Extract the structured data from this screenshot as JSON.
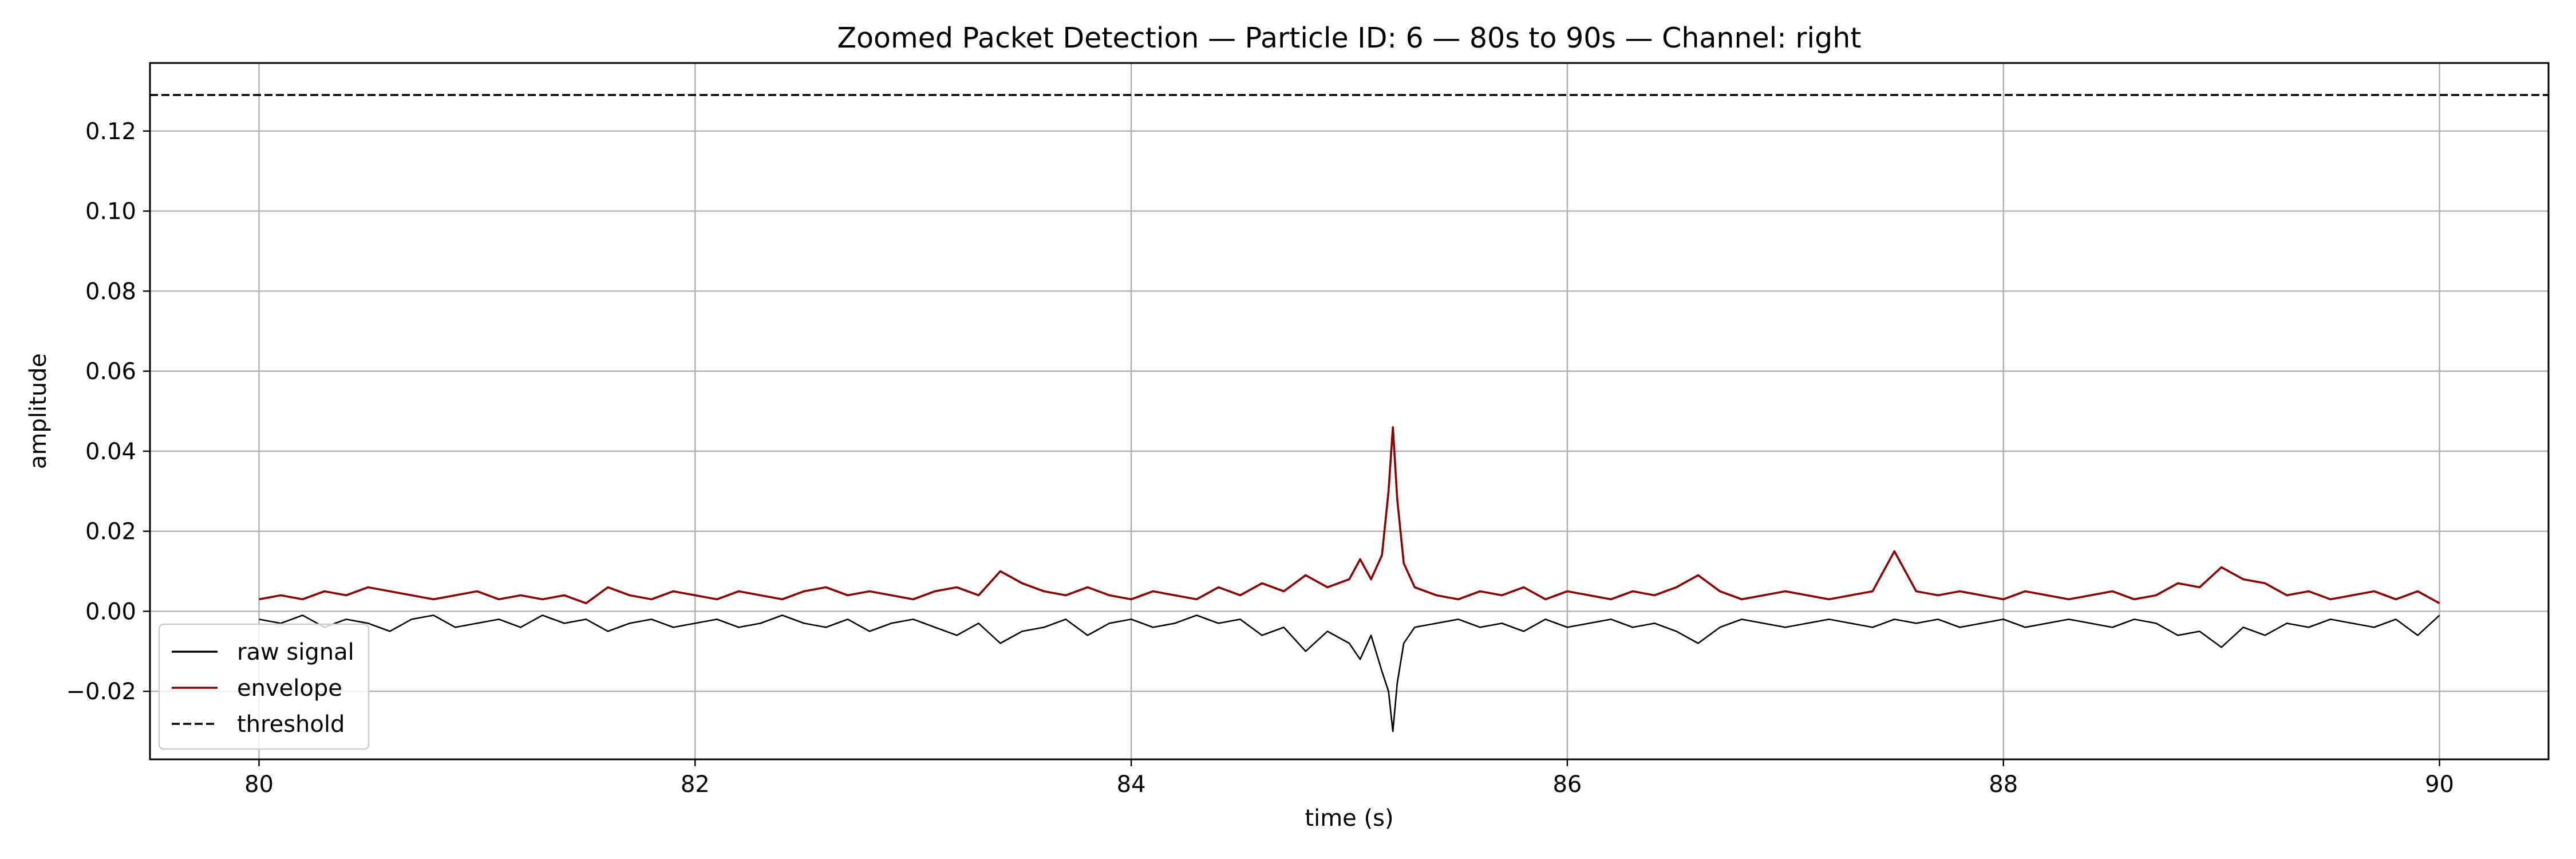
{
  "chart_data": {
    "type": "line",
    "title": "Zoomed Packet Detection — Particle ID: 6 — 80s to 90s — Channel: right",
    "xlabel": "time (s)",
    "ylabel": "amplitude",
    "xlim": [
      79.5,
      90.5
    ],
    "ylim": [
      -0.037,
      0.137
    ],
    "x_ticks": [
      80,
      82,
      84,
      86,
      88,
      90
    ],
    "x_tick_labels": [
      "80",
      "82",
      "84",
      "86",
      "88",
      "90"
    ],
    "y_ticks": [
      -0.02,
      0.0,
      0.02,
      0.04,
      0.06,
      0.08,
      0.1,
      0.12
    ],
    "y_tick_labels": [
      "−0.02",
      "0.00",
      "0.02",
      "0.04",
      "0.06",
      "0.08",
      "0.10",
      "0.12"
    ],
    "grid": true,
    "legend_position": "lower-left",
    "threshold": 0.129,
    "series": [
      {
        "name": "raw signal",
        "color": "#000000",
        "style": "solid",
        "x": [
          80.0,
          80.1,
          80.2,
          80.3,
          80.4,
          80.5,
          80.6,
          80.7,
          80.8,
          80.9,
          81.0,
          81.1,
          81.2,
          81.3,
          81.4,
          81.5,
          81.6,
          81.7,
          81.8,
          81.9,
          82.0,
          82.1,
          82.2,
          82.3,
          82.4,
          82.5,
          82.6,
          82.7,
          82.8,
          82.9,
          83.0,
          83.1,
          83.2,
          83.3,
          83.4,
          83.5,
          83.6,
          83.7,
          83.8,
          83.9,
          84.0,
          84.1,
          84.2,
          84.3,
          84.4,
          84.5,
          84.6,
          84.7,
          84.8,
          84.9,
          85.0,
          85.05,
          85.1,
          85.15,
          85.18,
          85.2,
          85.22,
          85.25,
          85.3,
          85.4,
          85.5,
          85.6,
          85.7,
          85.8,
          85.9,
          86.0,
          86.1,
          86.2,
          86.3,
          86.4,
          86.5,
          86.6,
          86.7,
          86.8,
          86.9,
          87.0,
          87.1,
          87.2,
          87.3,
          87.4,
          87.5,
          87.6,
          87.7,
          87.8,
          87.9,
          88.0,
          88.1,
          88.2,
          88.3,
          88.4,
          88.5,
          88.6,
          88.7,
          88.8,
          88.9,
          89.0,
          89.1,
          89.2,
          89.3,
          89.4,
          89.5,
          89.6,
          89.7,
          89.8,
          89.9,
          90.0
        ],
        "y": [
          -0.002,
          -0.003,
          -0.001,
          -0.004,
          -0.002,
          -0.003,
          -0.005,
          -0.002,
          -0.001,
          -0.004,
          -0.003,
          -0.002,
          -0.004,
          -0.001,
          -0.003,
          -0.002,
          -0.005,
          -0.003,
          -0.002,
          -0.004,
          -0.003,
          -0.002,
          -0.004,
          -0.003,
          -0.001,
          -0.003,
          -0.004,
          -0.002,
          -0.005,
          -0.003,
          -0.002,
          -0.004,
          -0.006,
          -0.003,
          -0.008,
          -0.005,
          -0.004,
          -0.002,
          -0.006,
          -0.003,
          -0.002,
          -0.004,
          -0.003,
          -0.001,
          -0.003,
          -0.002,
          -0.006,
          -0.004,
          -0.01,
          -0.005,
          -0.008,
          -0.012,
          -0.006,
          -0.015,
          -0.02,
          -0.03,
          -0.018,
          -0.008,
          -0.004,
          -0.003,
          -0.002,
          -0.004,
          -0.003,
          -0.005,
          -0.002,
          -0.004,
          -0.003,
          -0.002,
          -0.004,
          -0.003,
          -0.005,
          -0.008,
          -0.004,
          -0.002,
          -0.003,
          -0.004,
          -0.003,
          -0.002,
          -0.003,
          -0.004,
          -0.002,
          -0.003,
          -0.002,
          -0.004,
          -0.003,
          -0.002,
          -0.004,
          -0.003,
          -0.002,
          -0.003,
          -0.004,
          -0.002,
          -0.003,
          -0.006,
          -0.005,
          -0.009,
          -0.004,
          -0.006,
          -0.003,
          -0.004,
          -0.002,
          -0.003,
          -0.004,
          -0.002,
          -0.006,
          -0.001
        ]
      },
      {
        "name": "envelope",
        "color": "#8b0000",
        "style": "solid",
        "x": [
          80.0,
          80.1,
          80.2,
          80.3,
          80.4,
          80.5,
          80.6,
          80.7,
          80.8,
          80.9,
          81.0,
          81.1,
          81.2,
          81.3,
          81.4,
          81.5,
          81.6,
          81.7,
          81.8,
          81.9,
          82.0,
          82.1,
          82.2,
          82.3,
          82.4,
          82.5,
          82.6,
          82.7,
          82.8,
          82.9,
          83.0,
          83.1,
          83.2,
          83.3,
          83.4,
          83.5,
          83.6,
          83.7,
          83.8,
          83.9,
          84.0,
          84.1,
          84.2,
          84.3,
          84.4,
          84.5,
          84.6,
          84.7,
          84.8,
          84.9,
          85.0,
          85.05,
          85.1,
          85.15,
          85.18,
          85.2,
          85.22,
          85.25,
          85.3,
          85.4,
          85.5,
          85.6,
          85.7,
          85.8,
          85.9,
          86.0,
          86.1,
          86.2,
          86.3,
          86.4,
          86.5,
          86.6,
          86.7,
          86.8,
          86.9,
          87.0,
          87.1,
          87.2,
          87.3,
          87.4,
          87.5,
          87.6,
          87.7,
          87.8,
          87.9,
          88.0,
          88.1,
          88.2,
          88.3,
          88.4,
          88.5,
          88.6,
          88.7,
          88.8,
          88.9,
          89.0,
          89.1,
          89.2,
          89.3,
          89.4,
          89.5,
          89.6,
          89.7,
          89.8,
          89.9,
          90.0
        ],
        "y": [
          0.003,
          0.004,
          0.003,
          0.005,
          0.004,
          0.006,
          0.005,
          0.004,
          0.003,
          0.004,
          0.005,
          0.003,
          0.004,
          0.003,
          0.004,
          0.002,
          0.006,
          0.004,
          0.003,
          0.005,
          0.004,
          0.003,
          0.005,
          0.004,
          0.003,
          0.005,
          0.006,
          0.004,
          0.005,
          0.004,
          0.003,
          0.005,
          0.006,
          0.004,
          0.01,
          0.007,
          0.005,
          0.004,
          0.006,
          0.004,
          0.003,
          0.005,
          0.004,
          0.003,
          0.006,
          0.004,
          0.007,
          0.005,
          0.009,
          0.006,
          0.008,
          0.013,
          0.008,
          0.014,
          0.03,
          0.046,
          0.028,
          0.012,
          0.006,
          0.004,
          0.003,
          0.005,
          0.004,
          0.006,
          0.003,
          0.005,
          0.004,
          0.003,
          0.005,
          0.004,
          0.006,
          0.009,
          0.005,
          0.003,
          0.004,
          0.005,
          0.004,
          0.003,
          0.004,
          0.005,
          0.015,
          0.005,
          0.004,
          0.005,
          0.004,
          0.003,
          0.005,
          0.004,
          0.003,
          0.004,
          0.005,
          0.003,
          0.004,
          0.007,
          0.006,
          0.011,
          0.008,
          0.007,
          0.004,
          0.005,
          0.003,
          0.004,
          0.005,
          0.003,
          0.005,
          0.002
        ]
      }
    ]
  },
  "legend": [
    {
      "label": "raw signal",
      "color": "#000000",
      "style": "solid"
    },
    {
      "label": "envelope",
      "color": "#8b0000",
      "style": "solid"
    },
    {
      "label": "threshold",
      "color": "#000000",
      "style": "dashed"
    }
  ]
}
